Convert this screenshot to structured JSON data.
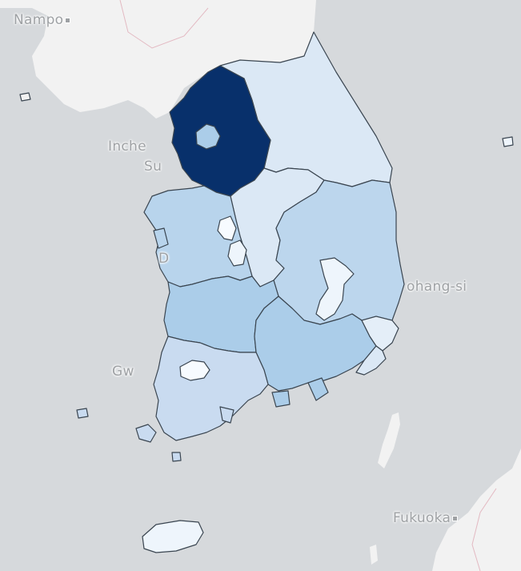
{
  "map": {
    "labels": {
      "nampo": "Nampo",
      "incheon": "Inche",
      "seoul_partial": "Su",
      "pohang": "ohang-si",
      "gwangju_partial": "Gw",
      "daejeon_partial": "D",
      "fukuoka": "Fukuoka"
    },
    "colors": {
      "water": "#d6d9dc",
      "land": "#f2f2f2",
      "border_line": "#e3b9c2",
      "region_stroke": "#3a4550",
      "scale_darkest": "#08306b",
      "scale_light": "#dbe8f5",
      "scale_lightest": "#eef5fc",
      "scale_mid": "#bcd6ed",
      "scale_mid2": "#abcde9",
      "scale_pale": "#c9dbf0"
    },
    "regions": [
      {
        "name": "Gyeonggi",
        "level": "highest",
        "fill": "#08306b"
      },
      {
        "name": "Seoul",
        "level": "mid",
        "fill": "#abcde9"
      },
      {
        "name": "Gangwon",
        "level": "light",
        "fill": "#dbe8f5"
      },
      {
        "name": "Chungbuk",
        "level": "light",
        "fill": "#dbe8f5"
      },
      {
        "name": "Gyeongbuk",
        "level": "mid",
        "fill": "#bcd6ed"
      },
      {
        "name": "Chungnam",
        "level": "mid",
        "fill": "#b8d4ec"
      },
      {
        "name": "Jeonbuk",
        "level": "mid",
        "fill": "#abcde9"
      },
      {
        "name": "Gyeongnam",
        "level": "mid",
        "fill": "#abcde9"
      },
      {
        "name": "Jeonnam",
        "level": "pale",
        "fill": "#c9dbf0"
      },
      {
        "name": "Jeju",
        "level": "lightest",
        "fill": "#eef5fc"
      },
      {
        "name": "Daegu",
        "level": "lightest",
        "fill": "#eef5fc"
      },
      {
        "name": "Ulsan",
        "level": "lightest",
        "fill": "#e4eef8"
      },
      {
        "name": "Busan",
        "level": "light",
        "fill": "#dbe8f5"
      },
      {
        "name": "Gwangju",
        "level": "white",
        "fill": "#f7fbff"
      },
      {
        "name": "Daejeon",
        "level": "lightest",
        "fill": "#eef5fc"
      },
      {
        "name": "Sejong",
        "level": "white",
        "fill": "#f7fbff"
      }
    ]
  }
}
